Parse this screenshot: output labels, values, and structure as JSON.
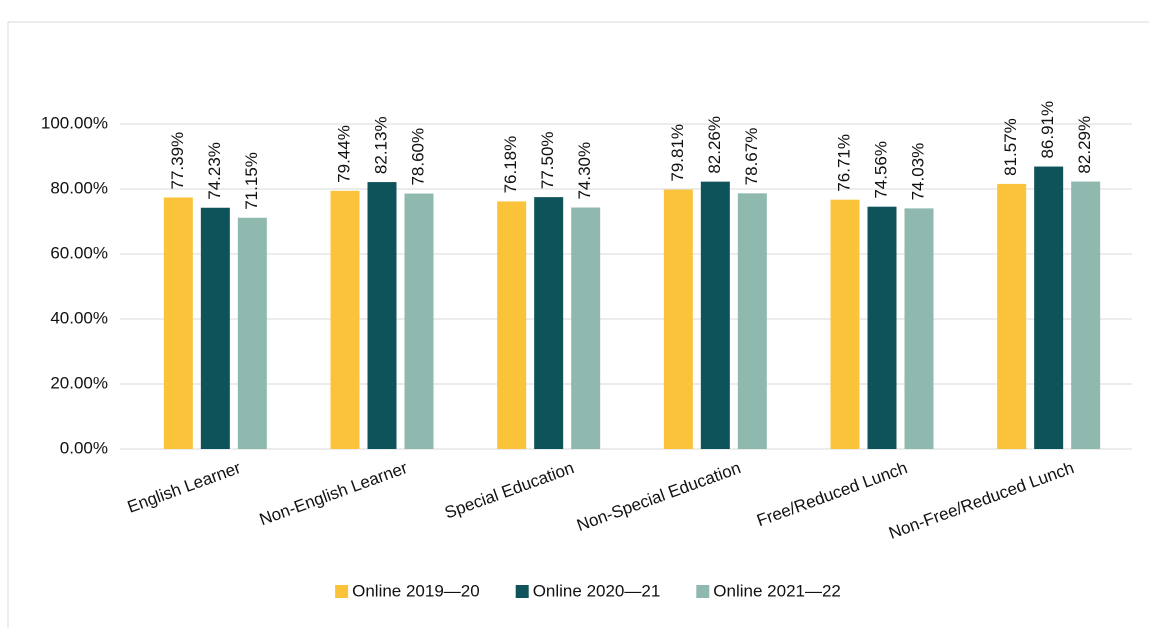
{
  "chart_data": {
    "type": "bar",
    "categories": [
      "English Learner",
      "Non-English Learner",
      "Special Education",
      "Non-Special Education",
      "Free/Reduced Lunch",
      "Non-Free/Reduced Lunch"
    ],
    "series": [
      {
        "name": "Online 2019—20",
        "color": "#fbc33a",
        "values": [
          77.39,
          79.44,
          76.18,
          79.81,
          76.71,
          81.57
        ],
        "value_labels": [
          "77.39%",
          "79.44%",
          "76.18%",
          "79.81%",
          "76.71%",
          "81.57%"
        ]
      },
      {
        "name": "Online 2020—21",
        "color": "#0f535a",
        "values": [
          74.23,
          82.13,
          77.5,
          82.26,
          74.56,
          86.91
        ],
        "value_labels": [
          "74.23%",
          "82.13%",
          "77.50%",
          "82.26%",
          "74.56%",
          "86.91%"
        ]
      },
      {
        "name": "Online 2021—22",
        "color": "#8fb8ae",
        "values": [
          71.15,
          78.6,
          74.3,
          78.67,
          74.03,
          82.29
        ],
        "value_labels": [
          "71.15%",
          "78.60%",
          "74.30%",
          "78.67%",
          "74.03%",
          "82.29%"
        ]
      }
    ],
    "ylim": [
      0,
      100
    ],
    "yticks": [
      {
        "value": 0,
        "label": "0.00%"
      },
      {
        "value": 20,
        "label": "20.00%"
      },
      {
        "value": 40,
        "label": "40.00%"
      },
      {
        "value": 60,
        "label": "60.00%"
      },
      {
        "value": 80,
        "label": "80.00%"
      },
      {
        "value": 100,
        "label": "100.00%"
      }
    ],
    "grid": true
  }
}
